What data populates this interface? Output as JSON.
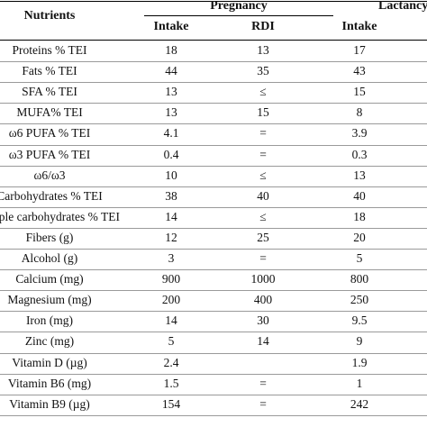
{
  "table": {
    "header": {
      "nutrients": "Nutrients",
      "group_pregnancy": "Pregnancy",
      "group_lactancy": "Lactancy",
      "col_intake_1": "Intake",
      "col_rdi": "RDI",
      "col_intake_2": "Intake"
    },
    "rows": [
      {
        "name": "Proteins % TEI",
        "intake_preg": "18",
        "rdi": "13",
        "intake_lact": "17"
      },
      {
        "name": "Fats % TEI",
        "intake_preg": "44",
        "rdi": "35",
        "intake_lact": "43"
      },
      {
        "name": "SFA % TEI",
        "intake_preg": "13",
        "rdi": "≤",
        "intake_lact": "15"
      },
      {
        "name": "MUFA% TEI",
        "intake_preg": "13",
        "rdi": "15",
        "intake_lact": "8"
      },
      {
        "name": "ω6 PUFA % TEI",
        "intake_preg": "4.1",
        "rdi": "=",
        "intake_lact": "3.9"
      },
      {
        "name": "ω3 PUFA % TEI",
        "intake_preg": "0.4",
        "rdi": "=",
        "intake_lact": "0.3"
      },
      {
        "name": "ω6/ω3",
        "intake_preg": "10",
        "rdi": "≤",
        "intake_lact": "13"
      },
      {
        "name": "Carbohydrates % TEI",
        "intake_preg": "38",
        "rdi": "40",
        "intake_lact": "40"
      },
      {
        "name": "Simple carbohydrates % TEI",
        "intake_preg": "14",
        "rdi": "≤",
        "intake_lact": "18"
      },
      {
        "name": "Fibers (g)",
        "intake_preg": "12",
        "rdi": "25",
        "intake_lact": "20"
      },
      {
        "name": "Alcohol (g)",
        "intake_preg": "3",
        "rdi": "=",
        "intake_lact": "5"
      },
      {
        "name": "Calcium (mg)",
        "intake_preg": "900",
        "rdi": "1000",
        "intake_lact": "800"
      },
      {
        "name": "Magnesium (mg)",
        "intake_preg": "200",
        "rdi": "400",
        "intake_lact": "250"
      },
      {
        "name": "Iron (mg)",
        "intake_preg": "14",
        "rdi": "30",
        "intake_lact": "9.5"
      },
      {
        "name": "Zinc (mg)",
        "intake_preg": "5",
        "rdi": "14",
        "intake_lact": "9"
      },
      {
        "name": "Vitamin D (µg)",
        "intake_preg": "2.4",
        "rdi": "",
        "intake_lact": "1.9"
      },
      {
        "name": "Vitamin B6 (mg)",
        "intake_preg": "1.5",
        "rdi": "=",
        "intake_lact": "1"
      },
      {
        "name": "Vitamin B9 (µg)",
        "intake_preg": "154",
        "rdi": "=",
        "intake_lact": "242"
      }
    ]
  }
}
